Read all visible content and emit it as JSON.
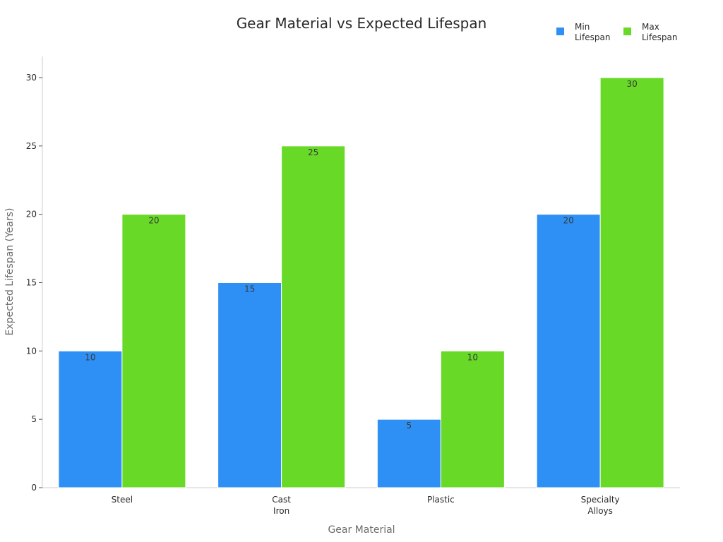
{
  "chart_data": {
    "type": "bar",
    "title": "Gear Material vs Expected Lifespan",
    "xlabel": "Gear Material",
    "ylabel": "Expected Lifespan (Years)",
    "categories": [
      [
        "Steel"
      ],
      [
        "Cast",
        "Iron"
      ],
      [
        "Plastic"
      ],
      [
        "Specialty",
        "Alloys"
      ]
    ],
    "series": [
      {
        "name": [
          "Min",
          "Lifespan"
        ],
        "values": [
          10,
          15,
          5,
          20
        ],
        "color": "#2e90f5"
      },
      {
        "name": [
          "Max",
          "Lifespan"
        ],
        "values": [
          20,
          25,
          10,
          30
        ],
        "color": "#67d926"
      }
    ],
    "ylim": [
      0,
      30
    ],
    "yticks": [
      0,
      5,
      10,
      15,
      20,
      25,
      30
    ],
    "grid": false,
    "legend_position": "top-right",
    "data_labels": true
  }
}
